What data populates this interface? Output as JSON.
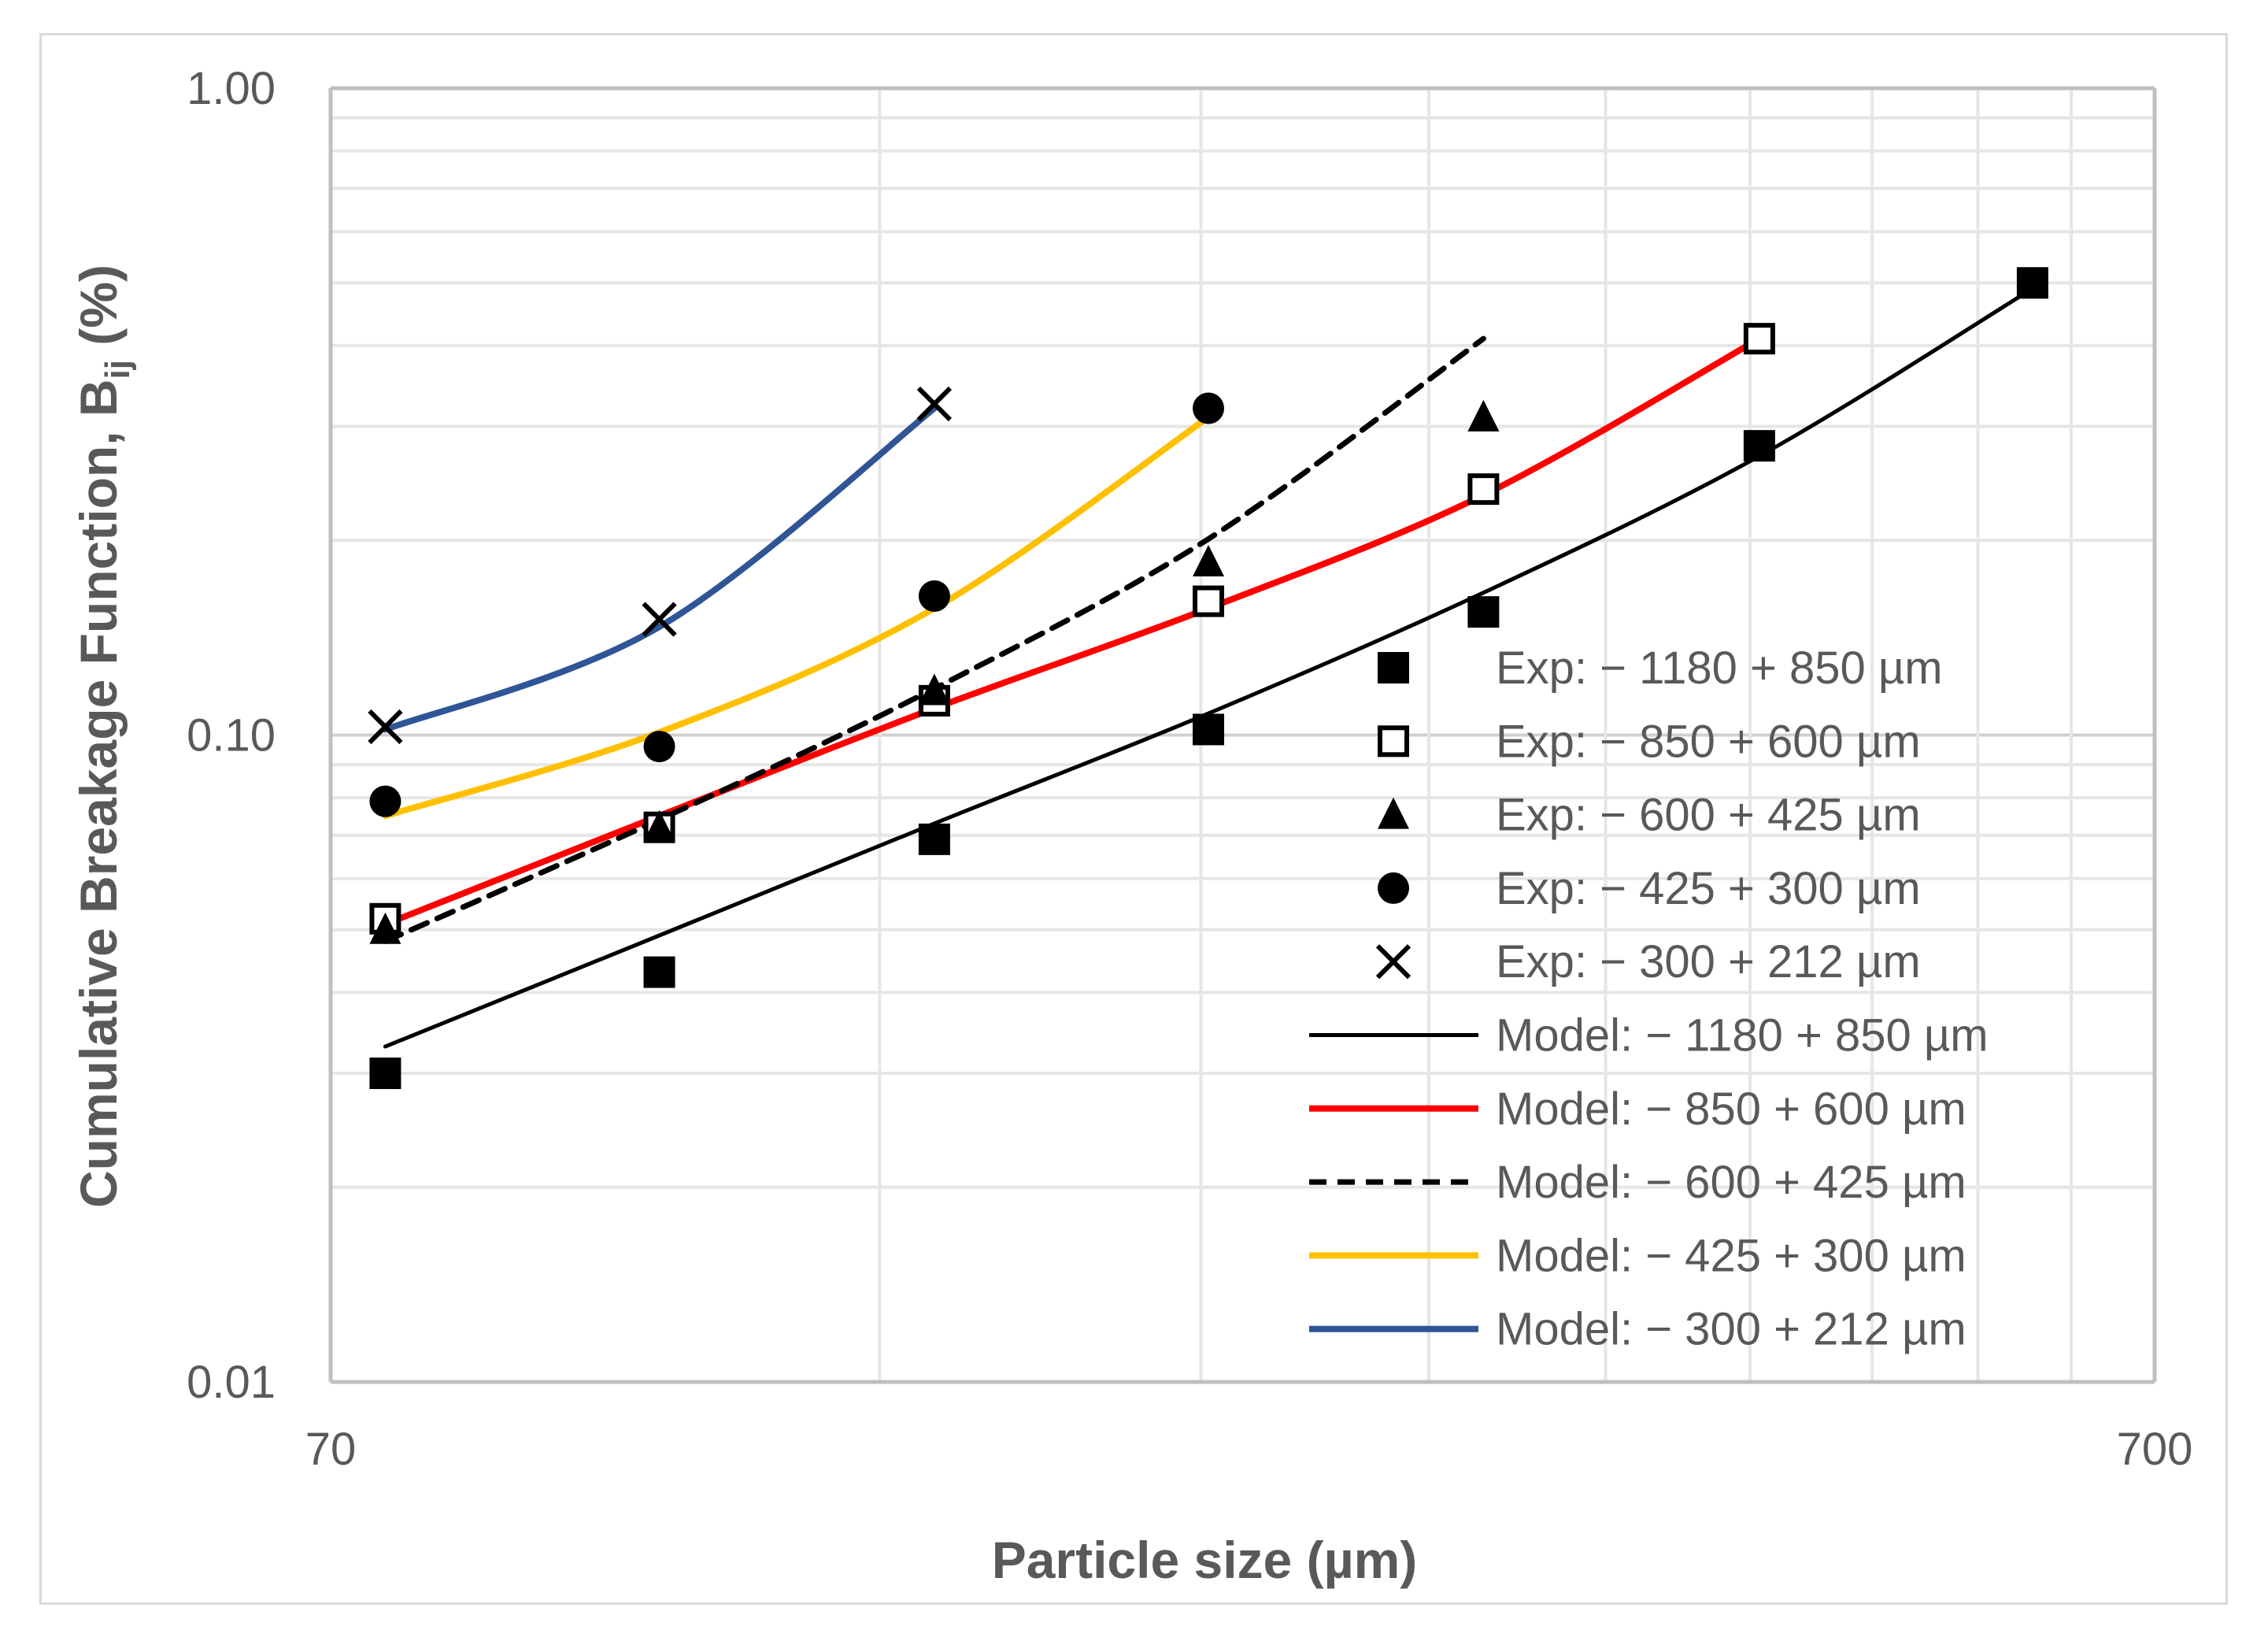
{
  "chart_data": {
    "type": "scatter",
    "xlabel": "Particle size (µm)",
    "ylabel_main": "Cumulative Breakage Function, B",
    "ylabel_sub": "ij",
    "ylabel_tail": " (%)",
    "x_scale": "log",
    "y_scale": "log",
    "xlim": [
      70,
      700
    ],
    "ylim": [
      0.01,
      1.0
    ],
    "x_ticks": [
      {
        "value": 70,
        "label": "70"
      },
      {
        "value": 700,
        "label": "700"
      }
    ],
    "y_ticks": [
      {
        "value": 0.01,
        "label": "0.01"
      },
      {
        "value": 0.1,
        "label": "0.10"
      },
      {
        "value": 1.0,
        "label": "1.00"
      }
    ],
    "grid": true,
    "legend_position": "right",
    "experimental_series": [
      {
        "name": "Exp: − 1180 + 850 µm",
        "marker": "filled-square",
        "color": "#000000",
        "x": [
          75,
          106,
          150,
          212,
          300,
          425,
          600
        ],
        "y": [
          0.03,
          0.043,
          0.069,
          0.102,
          0.155,
          0.28,
          0.5
        ]
      },
      {
        "name": "Exp: − 850 + 600 µm",
        "marker": "open-square",
        "color": "#000000",
        "x": [
          75,
          106,
          150,
          212,
          300,
          425
        ],
        "y": [
          0.052,
          0.072,
          0.113,
          0.161,
          0.24,
          0.41
        ]
      },
      {
        "name": "Exp: − 600 + 425 µm",
        "marker": "triangle",
        "color": "#000000",
        "x": [
          75,
          106,
          150,
          212,
          300
        ],
        "y": [
          0.05,
          0.072,
          0.117,
          0.185,
          0.31
        ]
      },
      {
        "name": "Exp: − 425 + 300 µm",
        "marker": "circle",
        "color": "#000000",
        "x": [
          75,
          106,
          150,
          212
        ],
        "y": [
          0.079,
          0.096,
          0.164,
          0.32
        ]
      },
      {
        "name": "Exp: − 300 + 212 µm",
        "marker": "x",
        "color": "#000000",
        "x": [
          75,
          106,
          150
        ],
        "y": [
          0.103,
          0.151,
          0.325
        ]
      }
    ],
    "model_series": [
      {
        "name": "Model: − 1180 + 850 µm",
        "color": "#000000",
        "dash": false,
        "width": 5,
        "x": [
          75,
          106,
          150,
          212,
          300,
          425,
          600
        ],
        "y": [
          0.033,
          0.049,
          0.073,
          0.108,
          0.166,
          0.27,
          0.49
        ]
      },
      {
        "name": "Model: − 850 + 600 µm",
        "color": "#ff0000",
        "dash": false,
        "width": 8,
        "x": [
          75,
          106,
          150,
          212,
          300,
          425
        ],
        "y": [
          0.051,
          0.075,
          0.11,
          0.157,
          0.235,
          0.41
        ]
      },
      {
        "name": "Model: − 600 + 425 µm",
        "color": "#000000",
        "dash": true,
        "width": 7,
        "x": [
          75,
          106,
          150,
          212,
          300
        ],
        "y": [
          0.048,
          0.074,
          0.118,
          0.201,
          0.41
        ]
      },
      {
        "name": "Model: − 425 + 300 µm",
        "color": "#ffc000",
        "dash": false,
        "width": 8,
        "x": [
          75,
          106,
          150,
          212
        ],
        "y": [
          0.075,
          0.101,
          0.157,
          0.31
        ]
      },
      {
        "name": "Model: − 300 + 212 µm",
        "color": "#2f5597",
        "dash": false,
        "width": 8,
        "x": [
          75,
          106,
          150
        ],
        "y": [
          0.102,
          0.147,
          0.32
        ]
      }
    ]
  }
}
